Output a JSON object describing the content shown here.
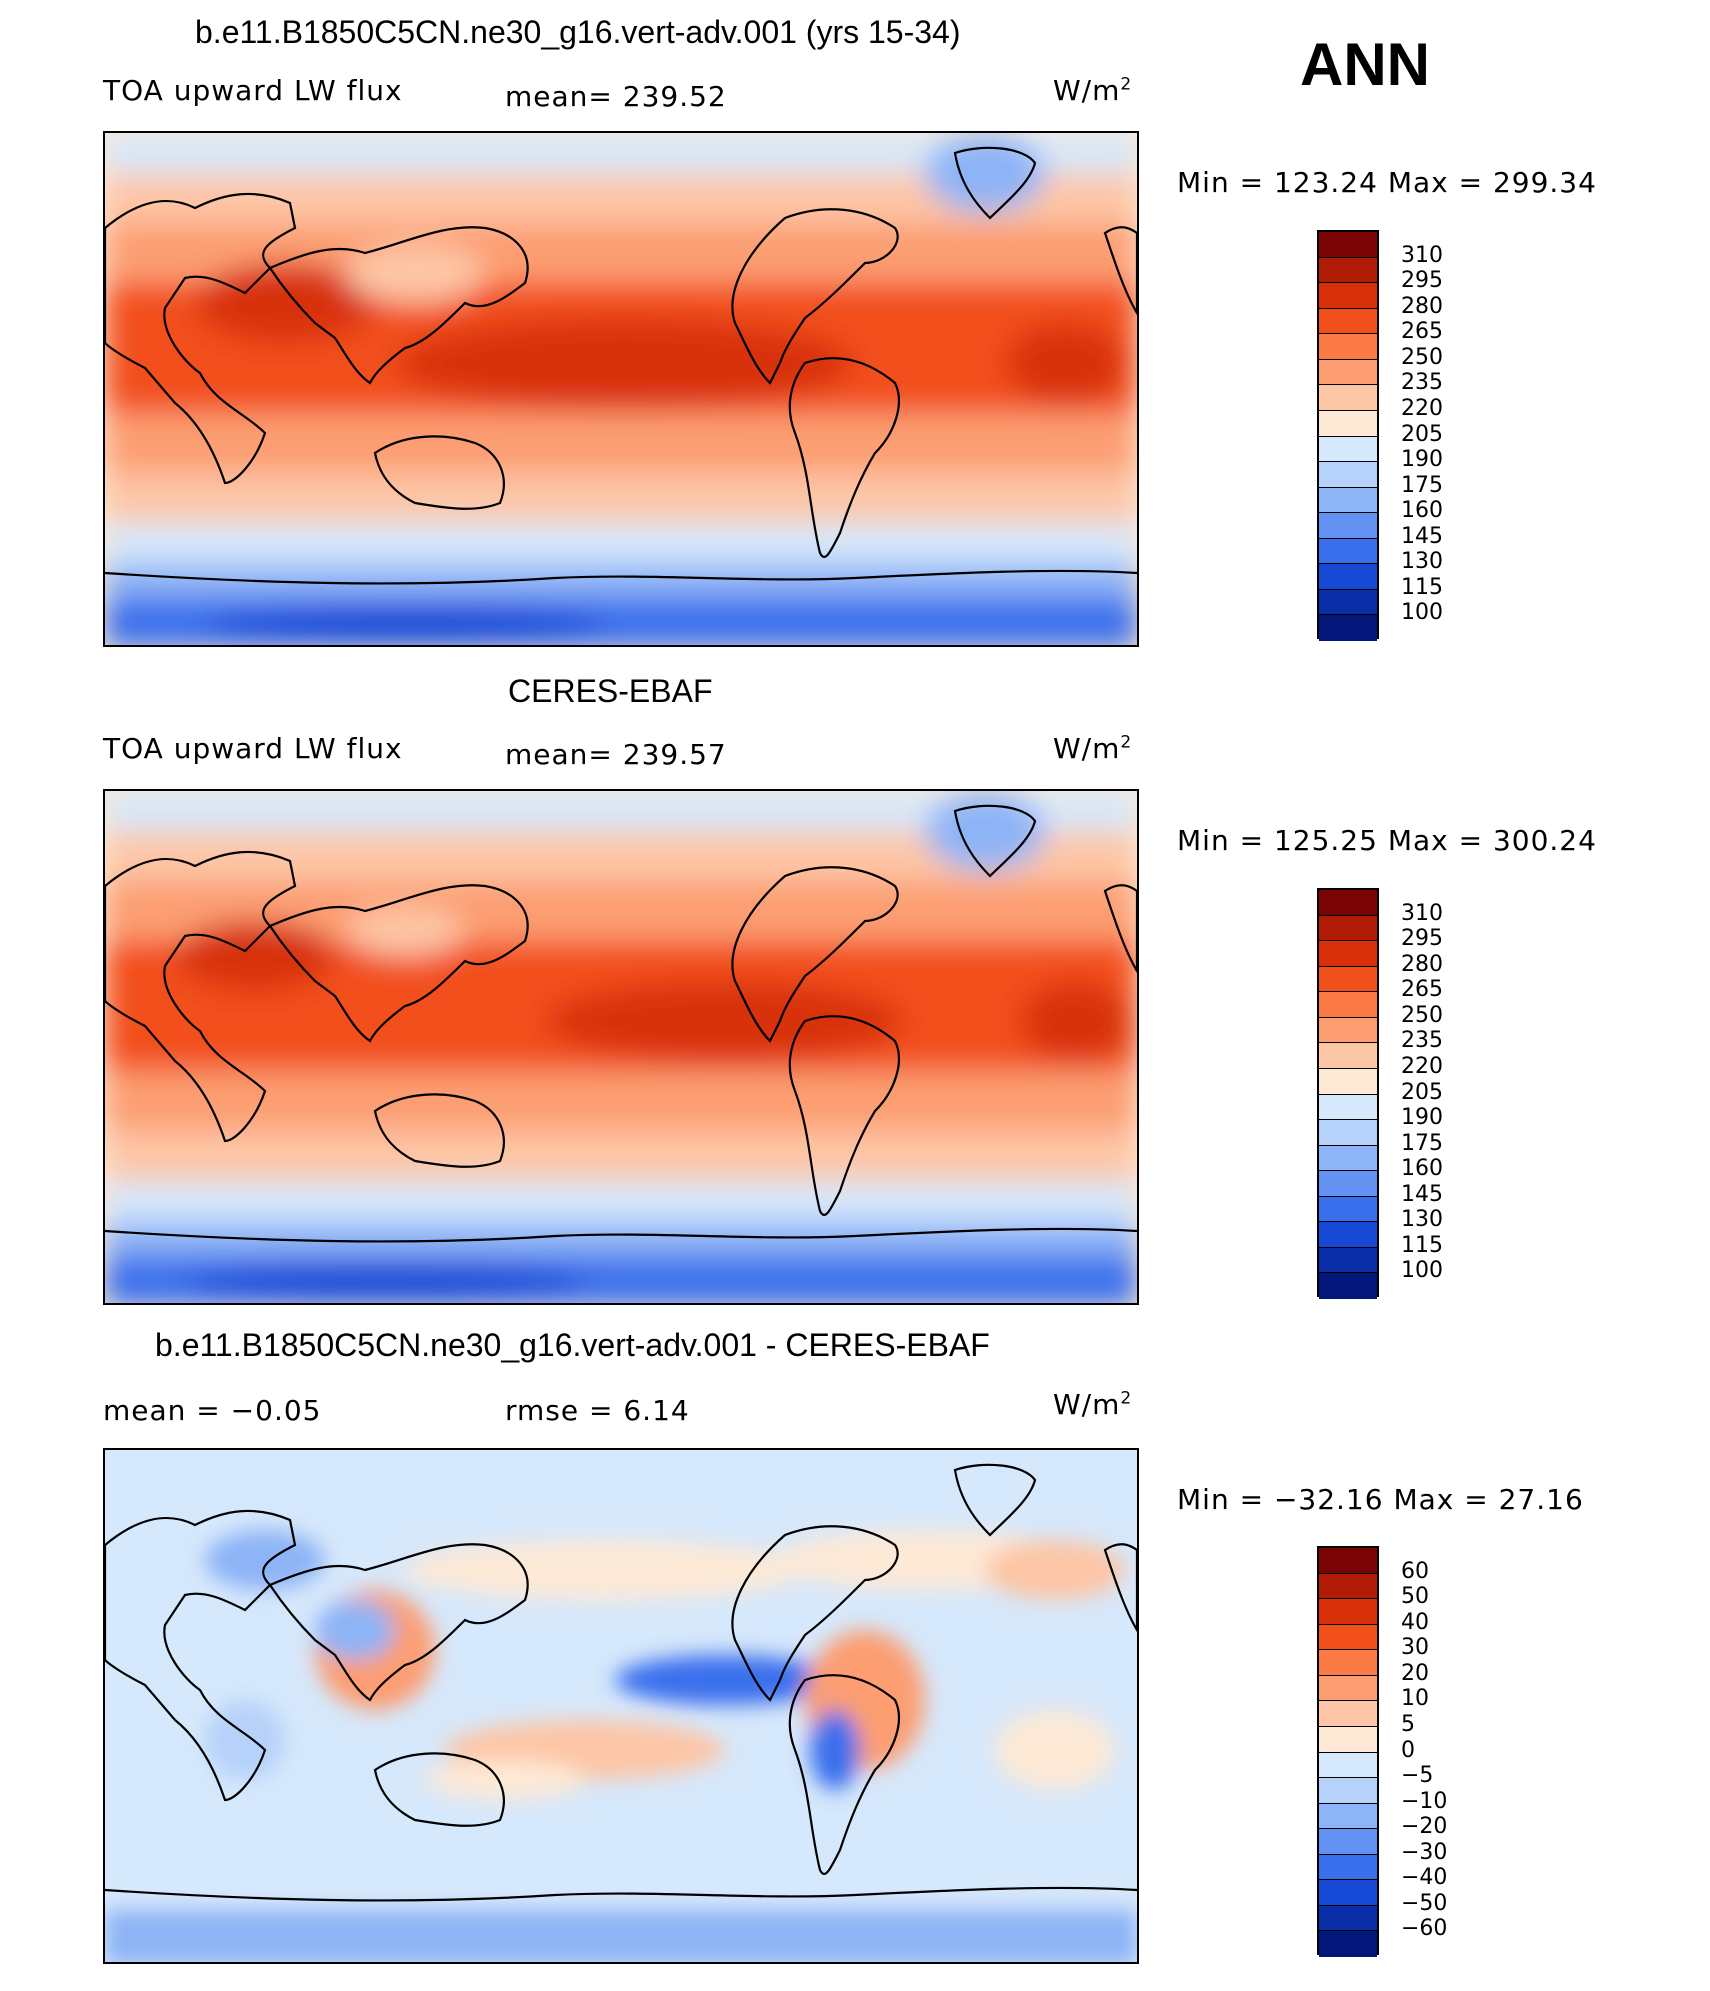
{
  "season": "ANN",
  "units_main": "W/m",
  "units_sup": "2",
  "panels": [
    {
      "title": "b.e11.B1850C5CN.ne30_g16.vert-adv.001 (yrs 15-34)",
      "left": "TOA upward LW flux",
      "stat": "mean= 239.52",
      "minmax": "Min = 123.24 Max = 299.34"
    },
    {
      "title": "CERES-EBAF",
      "left": "TOA upward LW flux",
      "stat": "mean= 239.57",
      "minmax": "Min = 125.25 Max = 300.24"
    },
    {
      "title": "b.e11.B1850C5CN.ne30_g16.vert-adv.001 - CERES-EBAF",
      "left": "mean = −0.05",
      "stat": "rmse = 6.14",
      "minmax": "Min = −32.16 Max = 27.16"
    }
  ],
  "colorbar_abs": {
    "labels": [
      "310",
      "295",
      "280",
      "265",
      "250",
      "235",
      "220",
      "205",
      "190",
      "175",
      "160",
      "145",
      "130",
      "115",
      "100"
    ],
    "colors": [
      "#7a0403",
      "#b01c05",
      "#d8300a",
      "#f2501a",
      "#fb7a45",
      "#fc9e72",
      "#fdc6a6",
      "#fde9d6",
      "#d6e8fb",
      "#b6d1fa",
      "#8db4f6",
      "#6392f2",
      "#3a6fec",
      "#1648d6",
      "#0a2ea8",
      "#03167a"
    ]
  },
  "colorbar_diff": {
    "labels": [
      "60",
      "50",
      "40",
      "30",
      "20",
      "10",
      "5",
      "0",
      "−5",
      "−10",
      "−20",
      "−30",
      "−40",
      "−50",
      "−60"
    ],
    "colors": [
      "#7a0403",
      "#b01c05",
      "#d8300a",
      "#f2501a",
      "#fb7a45",
      "#fc9e72",
      "#fdc6a6",
      "#fde9d6",
      "#d6e8fb",
      "#b6d1fa",
      "#8db4f6",
      "#6392f2",
      "#3a6fec",
      "#1648d6",
      "#0a2ea8",
      "#03167a"
    ]
  }
}
